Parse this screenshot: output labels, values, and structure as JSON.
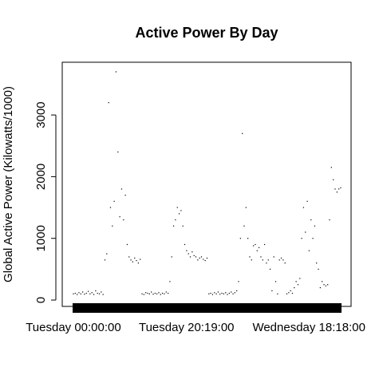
{
  "chart_data": {
    "type": "scatter",
    "title": "Active Power By Day",
    "y_label": "Global Active Power (Kilowatts/1000)",
    "color": "#000000",
    "x": [
      0,
      20,
      40,
      60,
      80,
      100,
      120,
      140,
      160,
      180,
      200,
      220,
      240,
      260,
      280,
      300,
      320,
      340,
      360,
      380,
      400,
      420,
      440,
      460,
      480,
      500,
      520,
      540,
      560,
      580,
      600,
      620,
      640,
      660,
      680,
      700,
      720,
      740,
      760,
      780,
      800,
      820,
      840,
      860,
      880,
      900,
      920,
      940,
      960,
      980,
      1000,
      1020,
      1040,
      1060,
      1080,
      1100,
      1120,
      1140,
      1160,
      1180,
      1200,
      1220,
      1240,
      1260,
      1280,
      1300,
      1320,
      1340,
      1360,
      1380,
      1400,
      1420,
      1440,
      1460,
      1480,
      1500,
      1520,
      1540,
      1560,
      1580,
      1600,
      1620,
      1640,
      1660,
      1680,
      1700,
      1720,
      1740,
      1760,
      1780,
      1800,
      1820,
      1840,
      1860,
      1880,
      1900,
      1920,
      1940,
      1960,
      1980,
      2000,
      2020,
      2040,
      2060,
      2080,
      2100,
      2120,
      2140,
      2160,
      2180,
      2200,
      2220,
      2240,
      2260,
      2280,
      2300,
      2320,
      2340,
      2360,
      2380,
      2400,
      2420,
      2440,
      2460,
      2480,
      2500,
      2520,
      2540,
      2560,
      2580,
      2600,
      2620,
      2640,
      2660,
      2680,
      2700,
      2720,
      2740,
      2760,
      2780,
      2800,
      2820,
      2840,
      2860,
      2880
    ],
    "values": [
      100,
      110,
      90,
      120,
      100,
      130,
      95,
      110,
      140,
      100,
      120,
      90,
      150,
      110,
      100,
      130,
      90,
      650,
      750,
      3200,
      1500,
      1200,
      1600,
      3700,
      2400,
      1350,
      1800,
      1300,
      1700,
      900,
      700,
      650,
      620,
      680,
      640,
      600,
      660,
      100,
      90,
      120,
      110,
      100,
      130,
      95,
      110,
      100,
      120,
      90,
      110,
      100,
      130,
      110,
      300,
      700,
      1200,
      1300,
      1500,
      1400,
      1450,
      1200,
      900,
      800,
      750,
      700,
      780,
      720,
      700,
      650,
      680,
      700,
      660,
      640,
      680,
      100,
      110,
      90,
      120,
      100,
      130,
      95,
      110,
      100,
      120,
      90,
      110,
      130,
      100,
      120,
      150,
      300,
      1000,
      2700,
      1200,
      1500,
      1000,
      700,
      650,
      880,
      900,
      800,
      850,
      700,
      650,
      900,
      600,
      650,
      500,
      150,
      700,
      300,
      100,
      650,
      680,
      650,
      600,
      100,
      120,
      150,
      110,
      200,
      300,
      250,
      350,
      1000,
      1500,
      1100,
      1600,
      800,
      1300,
      1000,
      1200,
      600,
      500,
      200,
      300,
      250,
      230,
      250,
      1300,
      2150,
      1950,
      1800,
      1750,
      1800,
      1820
    ],
    "xlim": [
      -120,
      2992
    ],
    "ylim": [
      -103,
      3855
    ],
    "xticks": [
      {
        "value": 0,
        "label": "Tuesday 00:00:00"
      },
      {
        "value": 1219,
        "label": "Tuesday 20:19:00"
      },
      {
        "value": 2538,
        "label": "Wednesday 18:18:00"
      }
    ],
    "yticks": [
      0,
      1000,
      2000,
      3000
    ]
  }
}
